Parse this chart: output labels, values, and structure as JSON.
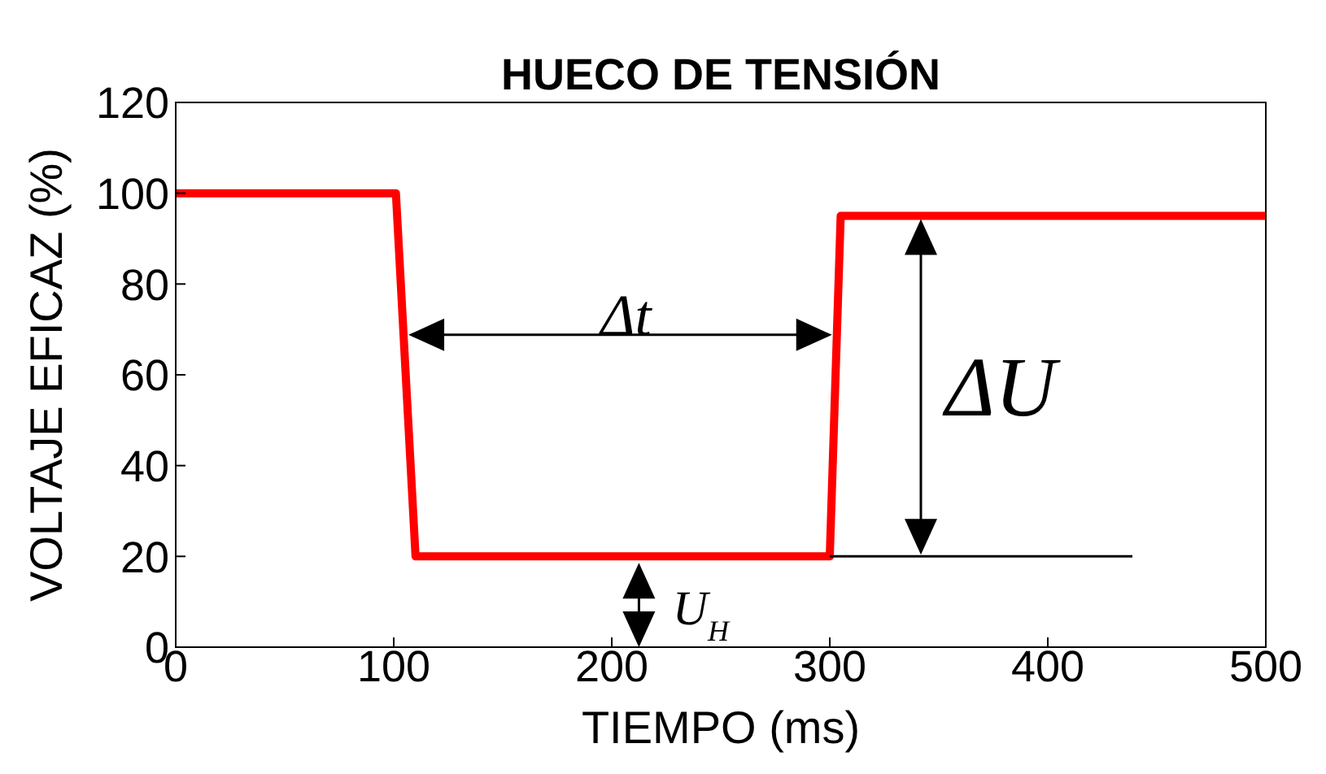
{
  "chart_data": {
    "type": "line",
    "title": "HUECO DE TENSIÓN",
    "xlabel": "TIEMPO (ms)",
    "ylabel": "VOLTAJE EFICAZ (%)",
    "x": [
      0,
      101,
      110,
      300,
      305,
      500
    ],
    "series": [
      {
        "color": "#ff0000",
        "values": [
          100,
          100,
          20,
          20,
          95,
          95
        ]
      }
    ],
    "xlim": [
      0,
      500
    ],
    "xticks": [
      0,
      100,
      200,
      300,
      400,
      500
    ],
    "ylim": [
      0,
      120
    ],
    "yticks": [
      0,
      20,
      40,
      60,
      80,
      100,
      120
    ],
    "grid": false,
    "legend": false,
    "marker": "none",
    "line_style": "solid",
    "annotations": [
      "Δt",
      "ΔU",
      "U$_{H}$"
    ]
  }
}
